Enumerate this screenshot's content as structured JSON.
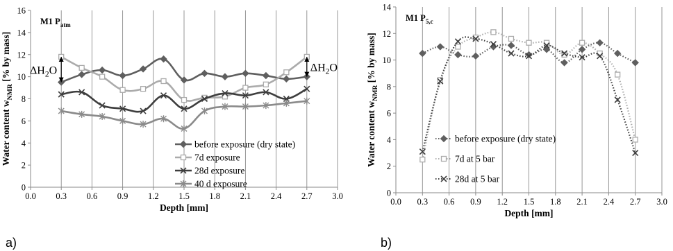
{
  "chart_data": [
    {
      "id": "left",
      "type": "line",
      "panel_label": "a)",
      "title_main": "M1 P",
      "title_sub": "atm",
      "xlabel": "Depth [mm]",
      "ylabel_main": "Water content w",
      "ylabel_sub": "NMR",
      "ylabel_tail": " [% by mass]",
      "xlim": [
        0.0,
        3.0
      ],
      "ylim": [
        0,
        16
      ],
      "xticks": [
        "0.0",
        "0.3",
        "0.6",
        "0.9",
        "1.2",
        "1.5",
        "1.8",
        "2.1",
        "2.4",
        "2.7",
        "3.0"
      ],
      "yticks": [
        "0",
        "2",
        "4",
        "6",
        "8",
        "10",
        "12",
        "14",
        "16"
      ],
      "grid": "vertical",
      "legend_position": "bottom-right",
      "annotations": [
        {
          "text": "ΔH",
          "sub": "2",
          "tail": "O",
          "x": 0.3,
          "y_from": 11.8,
          "y_to": 9.5,
          "side": "left"
        },
        {
          "text": "ΔH",
          "sub": "2",
          "tail": "O",
          "x": 2.7,
          "y_from": 11.8,
          "y_to": 10.0,
          "side": "right"
        }
      ],
      "series": [
        {
          "name": "before exposure (dry state)",
          "color": "#5f5f5f",
          "marker": "diamond",
          "dash": "solid",
          "x": [
            0.3,
            0.5,
            0.7,
            0.9,
            1.1,
            1.3,
            1.5,
            1.7,
            1.9,
            2.1,
            2.3,
            2.5,
            2.7
          ],
          "y": [
            9.5,
            10.2,
            10.6,
            10.1,
            10.7,
            11.6,
            9.7,
            10.3,
            10.0,
            10.3,
            10.1,
            9.8,
            10.0
          ]
        },
        {
          "name": "7d exposure",
          "color": "#ababab",
          "marker": "square",
          "dash": "solid",
          "x": [
            0.3,
            0.5,
            0.7,
            0.9,
            1.1,
            1.3,
            1.5,
            1.7,
            1.9,
            2.1,
            2.3,
            2.5,
            2.7
          ],
          "y": [
            11.8,
            10.8,
            10.0,
            8.8,
            8.9,
            9.6,
            7.9,
            8.1,
            8.2,
            9.0,
            9.3,
            10.4,
            11.8
          ]
        },
        {
          "name": "28d exposure",
          "color": "#3d3d3d",
          "marker": "x",
          "dash": "solid",
          "x": [
            0.3,
            0.5,
            0.7,
            0.9,
            1.1,
            1.3,
            1.5,
            1.7,
            1.9,
            2.1,
            2.3,
            2.5,
            2.7
          ],
          "y": [
            8.4,
            8.6,
            7.4,
            7.1,
            6.9,
            8.3,
            7.1,
            8.0,
            8.5,
            8.3,
            8.6,
            8.0,
            8.9
          ]
        },
        {
          "name": "40 d exposure",
          "color": "#8a8a8a",
          "marker": "star",
          "dash": "solid",
          "x": [
            0.3,
            0.5,
            0.7,
            0.9,
            1.1,
            1.3,
            1.5,
            1.7,
            1.9,
            2.1,
            2.3,
            2.5,
            2.7
          ],
          "y": [
            6.9,
            6.6,
            6.4,
            6.0,
            5.7,
            6.2,
            5.3,
            6.9,
            7.3,
            7.3,
            7.4,
            7.6,
            7.8
          ]
        }
      ]
    },
    {
      "id": "right",
      "type": "line",
      "panel_label": "b)",
      "title_main": "M1 P",
      "title_sub": "5,c",
      "xlabel": "Depth [mm]",
      "ylabel_main": "Water content w",
      "ylabel_sub": "NMR",
      "ylabel_tail": " [% by mass]",
      "xlim": [
        0.0,
        3.0
      ],
      "ylim": [
        0,
        14
      ],
      "xticks": [
        "0.0",
        "0.3",
        "0.6",
        "0.9",
        "1.2",
        "1.5",
        "1.8",
        "2.1",
        "2.4",
        "2.7",
        "3.0"
      ],
      "yticks": [
        "0",
        "2",
        "4",
        "6",
        "8",
        "10",
        "12",
        "14"
      ],
      "grid": "vertical",
      "legend_position": "bottom-left",
      "series": [
        {
          "name": "before exposure (dry state)",
          "color": "#5f5f5f",
          "marker": "diamond",
          "dash": "dotted",
          "x": [
            0.3,
            0.5,
            0.7,
            0.9,
            1.1,
            1.3,
            1.5,
            1.7,
            1.9,
            2.1,
            2.3,
            2.5,
            2.7
          ],
          "y": [
            10.5,
            11.0,
            10.4,
            10.3,
            11.0,
            11.1,
            10.4,
            10.8,
            9.8,
            10.8,
            11.3,
            10.5,
            9.8
          ]
        },
        {
          "name": "7d at 5 bar",
          "color": "#ababab",
          "marker": "square",
          "dash": "dotted",
          "x": [
            0.3,
            0.5,
            0.7,
            0.9,
            1.1,
            1.3,
            1.5,
            1.7,
            1.9,
            2.1,
            2.3,
            2.5,
            2.7
          ],
          "y": [
            2.5,
            8.5,
            11.0,
            11.7,
            12.1,
            11.6,
            11.3,
            11.3,
            10.4,
            11.3,
            10.5,
            8.9,
            4.0
          ]
        },
        {
          "name": "28d at 5 bar",
          "color": "#3d3d3d",
          "marker": "x",
          "dash": "dotted",
          "x": [
            0.3,
            0.5,
            0.7,
            0.9,
            1.1,
            1.3,
            1.5,
            1.7,
            1.9,
            2.1,
            2.3,
            2.5,
            2.7
          ],
          "y": [
            3.1,
            8.4,
            11.4,
            11.6,
            11.2,
            10.5,
            10.3,
            11.1,
            10.5,
            10.2,
            10.3,
            7.0,
            3.0
          ]
        }
      ]
    }
  ]
}
